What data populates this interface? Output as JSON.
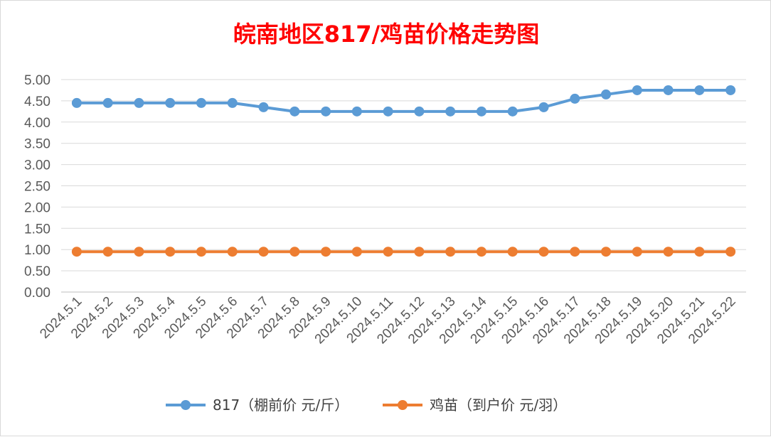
{
  "chart_data": {
    "type": "line",
    "title": "皖南地区817/鸡苗价格走势图",
    "categories": [
      "2024.5.1",
      "2024.5.2",
      "2024.5.3",
      "2024.5.4",
      "2024.5.5",
      "2024.5.6",
      "2024.5.7",
      "2024.5.8",
      "2024.5.9",
      "2024.5.10",
      "2024.5.11",
      "2024.5.12",
      "2024.5.13",
      "2024.5.14",
      "2024.5.15",
      "2024.5.16",
      "2024.5.17",
      "2024.5.18",
      "2024.5.19",
      "2024.5.20",
      "2024.5.21",
      "2024.5.22"
    ],
    "ylim": [
      0,
      5
    ],
    "ytick_labels": [
      "0.00",
      "0.50",
      "1.00",
      "1.50",
      "2.00",
      "2.50",
      "3.00",
      "3.50",
      "4.00",
      "4.50",
      "5.00"
    ],
    "grid": true,
    "legend_position": "bottom",
    "series": [
      {
        "name": "817（棚前价 元/斤）",
        "color": "#5b9bd5",
        "values": [
          4.45,
          4.45,
          4.45,
          4.45,
          4.45,
          4.45,
          4.35,
          4.25,
          4.25,
          4.25,
          4.25,
          4.25,
          4.25,
          4.25,
          4.25,
          4.35,
          4.55,
          4.65,
          4.75,
          4.75,
          4.75,
          4.75
        ]
      },
      {
        "name": "鸡苗（到户价 元/羽）",
        "color": "#ed7d31",
        "values": [
          0.95,
          0.95,
          0.95,
          0.95,
          0.95,
          0.95,
          0.95,
          0.95,
          0.95,
          0.95,
          0.95,
          0.95,
          0.95,
          0.95,
          0.95,
          0.95,
          0.95,
          0.95,
          0.95,
          0.95,
          0.95,
          0.95
        ]
      }
    ]
  }
}
